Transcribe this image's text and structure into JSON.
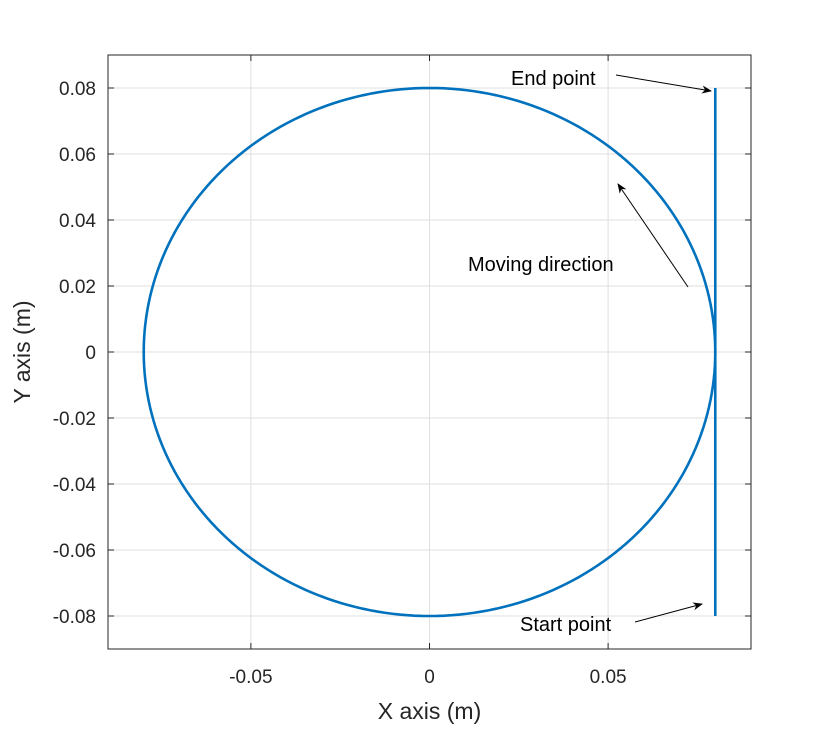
{
  "chart_data": {
    "type": "line",
    "xlabel": "X axis (m)",
    "ylabel": "Y axis (m)",
    "xlim": [
      -0.09,
      0.09
    ],
    "ylim": [
      -0.09,
      0.09
    ],
    "grid": true,
    "x_ticks": [
      -0.05,
      0,
      0.05
    ],
    "x_tick_labels": [
      "-0.05",
      "0",
      "0.05"
    ],
    "y_ticks": [
      -0.08,
      -0.06,
      -0.04,
      -0.02,
      0,
      0.02,
      0.04,
      0.06,
      0.08
    ],
    "y_tick_labels": [
      "-0.08",
      "-0.06",
      "-0.04",
      "-0.02",
      "0",
      "0.02",
      "0.04",
      "0.06",
      "0.08"
    ],
    "series": [
      {
        "color": "#0072bd",
        "segments": [
          {
            "kind": "line",
            "x": [
              0.08,
              0.08
            ],
            "y": [
              -0.08,
              0.0
            ]
          },
          {
            "kind": "circle",
            "center": [
              0,
              0
            ],
            "radius": 0.08,
            "start_angle_deg": 0,
            "end_angle_deg": 360,
            "direction": "counterclockwise"
          },
          {
            "kind": "line",
            "x": [
              0.08,
              0.08
            ],
            "y": [
              0.0,
              0.08
            ]
          }
        ]
      }
    ],
    "annotations": [
      {
        "text": "End point",
        "target": [
          0.08,
          0.08
        ]
      },
      {
        "text": "Moving direction",
        "target": [
          0.052,
          0.051
        ]
      },
      {
        "text": "Start point",
        "target": [
          0.08,
          -0.076
        ]
      }
    ]
  }
}
